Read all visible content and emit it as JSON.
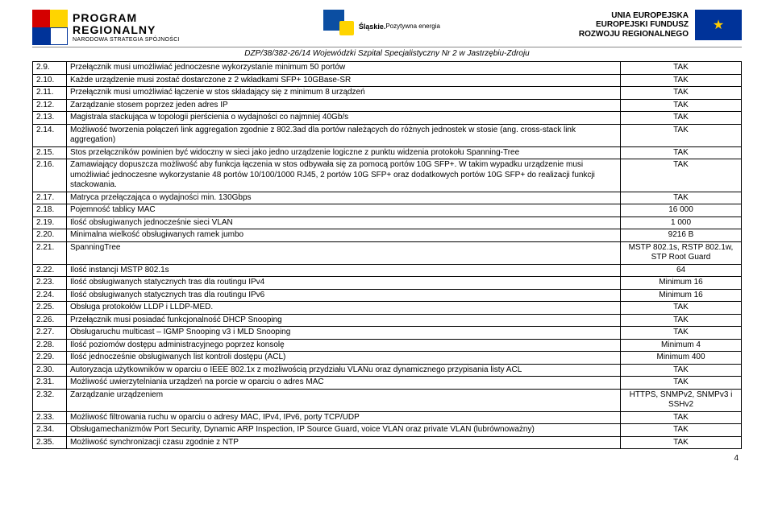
{
  "header": {
    "pr_line1": "PROGRAM",
    "pr_line2": "REGIONALNY",
    "pr_sub": "NARODOWA STRATEGIA SPÓJNOŚCI",
    "slaskie_title": "Śląskie.",
    "slaskie_sub": "Pozytywna energia",
    "eu_line1": "UNIA EUROPEJSKA",
    "eu_line2": "EUROPEJSKI FUNDUSZ",
    "eu_line3": "ROZWOJU REGIONALNEGO",
    "doc_title": "DZP/38/382-26/14   Wojewódzki Szpital Specjalistyczny Nr 2 w Jastrzębiu-Zdroju"
  },
  "rows": [
    {
      "n": "2.9.",
      "d": "Przełącznik musi umożliwiać jednoczesne wykorzystanie minimum 50 portów",
      "v": "TAK"
    },
    {
      "n": "2.10.",
      "d": "Każde urządzenie musi zostać dostarczone z 2 wkładkami SFP+ 10GBase-SR",
      "v": "TAK"
    },
    {
      "n": "2.11.",
      "d": "Przełącznik musi umożliwiać łączenie w stos składający się  z minimum 8 urządzeń",
      "v": "TAK"
    },
    {
      "n": "2.12.",
      "d": "Zarządzanie stosem poprzez jeden adres IP",
      "v": "TAK"
    },
    {
      "n": "2.13.",
      "d": "Magistrala stackująca w topologii pierścienia o wydajności co najmniej 40Gb/s",
      "v": "TAK"
    },
    {
      "n": "2.14.",
      "d": "Możliwość tworzenia połączeń link aggregation zgodnie z 802.3ad dla portów należących do różnych jednostek w stosie (ang. cross-stack link aggregation)",
      "v": "TAK"
    },
    {
      "n": "2.15.",
      "d": "Stos przełączników powinien być widoczny w sieci jako jedno urządzenie logiczne z punktu widzenia protokołu Spanning-Tree",
      "v": "TAK"
    },
    {
      "n": "2.16.",
      "d": "Zamawiający dopuszcza możliwość aby funkcja łączenia w stos odbywała się za pomocą portów 10G SFP+. W takim wypadku urządzenie musi umożliwiać jednoczesne wykorzystanie 48 portów 10/100/1000 RJ45, 2 portów 10G SFP+ oraz dodatkowych portów 10G SFP+ do realizacji funkcji stackowania.",
      "v": "TAK"
    },
    {
      "n": "2.17.",
      "d": "Matryca przełączająca o wydajności min. 130Gbps",
      "v": "TAK"
    },
    {
      "n": "2.18.",
      "d": "Pojemność tablicy MAC",
      "v": "16 000"
    },
    {
      "n": "2.19.",
      "d": "Ilość obsługiwanych jednocześnie sieci VLAN",
      "v": "1 000"
    },
    {
      "n": "2.20.",
      "d": "Minimalna wielkość obsługiwanych ramek jumbo",
      "v": "9216 B"
    },
    {
      "n": "2.21.",
      "d": "SpanningTree",
      "v": "MSTP 802.1s, RSTP 802.1w, STP Root Guard"
    },
    {
      "n": "2.22.",
      "d": "Ilość instancji MSTP 802.1s",
      "v": "64"
    },
    {
      "n": "2.23.",
      "d": "Ilość obsługiwanych statycznych tras dla routingu IPv4",
      "v": "Minimum 16"
    },
    {
      "n": "2.24.",
      "d": "Ilość obsługiwanych statycznych tras dla routingu IPv6",
      "v": "Minimum 16"
    },
    {
      "n": "2.25.",
      "d": "Obsługa protokołów LLDP i LLDP-MED.",
      "v": "TAK"
    },
    {
      "n": "2.26.",
      "d": "Przełącznik musi posiadać funkcjonalność DHCP Snooping",
      "v": "TAK"
    },
    {
      "n": "2.27.",
      "d": "Obsługaruchu multicast – IGMP Snooping v3 i MLD Snooping",
      "v": "TAK"
    },
    {
      "n": "2.28.",
      "d": "Ilość poziomów dostępu administracyjnego poprzez konsolę",
      "v": "Minimum 4"
    },
    {
      "n": "2.29.",
      "d": "Ilość jednocześnie obsługiwanych list kontroli dostępu (ACL)",
      "v": "Minimum 400"
    },
    {
      "n": "2.30.",
      "d": "Autoryzacja użytkowników w oparciu o IEEE 802.1x z możliwością przydziału VLANu oraz dynamicznego przypisania listy ACL",
      "v": "TAK"
    },
    {
      "n": "2.31.",
      "d": "Możliwość uwierzytelniania urządzeń na porcie w oparciu o adres MAC",
      "v": "TAK"
    },
    {
      "n": "2.32.",
      "d": "Zarządzanie urządzeniem",
      "v": "HTTPS, SNMPv2, SNMPv3 i SSHv2"
    },
    {
      "n": "2.33.",
      "d": "Możliwość filtrowania ruchu w oparciu o adresy MAC, IPv4, IPv6, porty TCP/UDP",
      "v": "TAK"
    },
    {
      "n": "2.34.",
      "d": "Obsługamechanizmów Port Security, Dynamic ARP Inspection, IP Source Guard, voice VLAN oraz private VLAN (lubrównoważny)",
      "v": "TAK"
    },
    {
      "n": "2.35.",
      "d": "Możliwość synchronizacji czasu zgodnie z NTP",
      "v": "TAK"
    }
  ],
  "page_number": "4",
  "colors": {
    "border": "#000000",
    "eu_blue": "#003399",
    "eu_yellow": "#ffcc00",
    "slaskie_blue": "#0b4ea2",
    "slaskie_yellow": "#ffd400"
  }
}
